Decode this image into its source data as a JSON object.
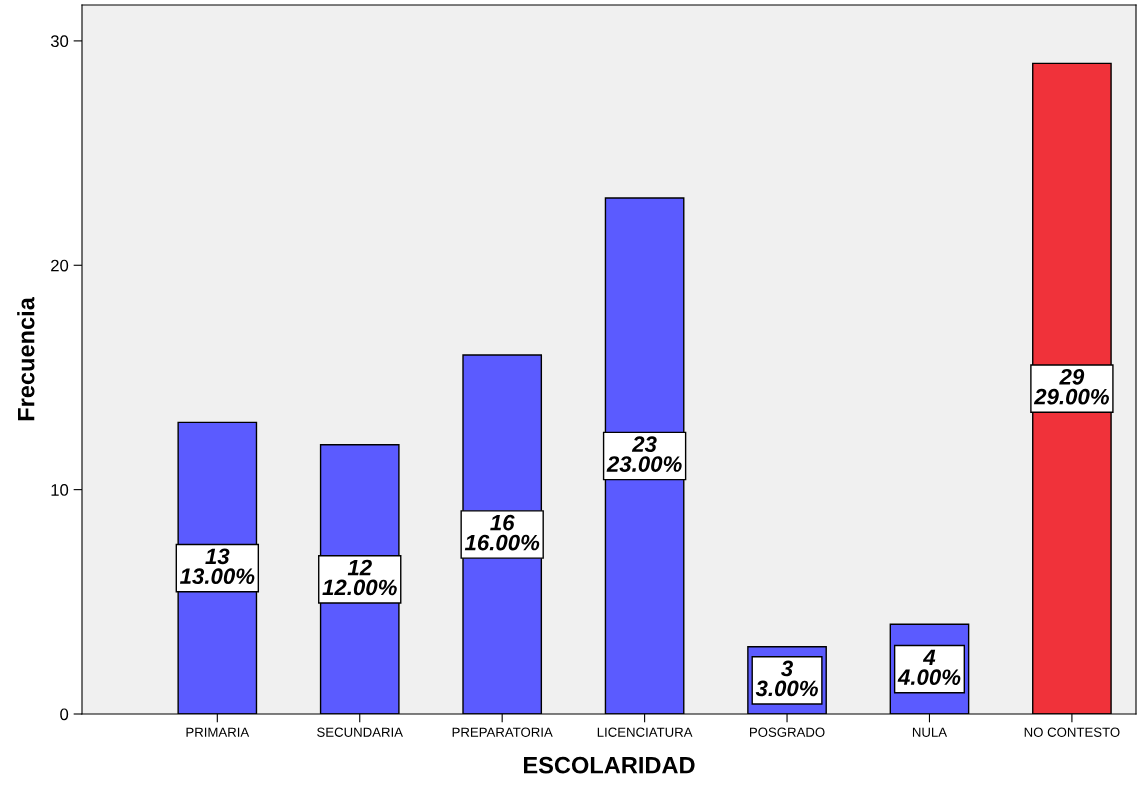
{
  "chart_data": {
    "type": "bar",
    "xlabel": "ESCOLARIDAD",
    "ylabel": "Frecuencia",
    "categories": [
      "PRIMARIA",
      "SECUNDARIA",
      "PREPARATORIA",
      "LICENCIATURA",
      "POSGRADO",
      "NULA",
      "NO CONTESTO"
    ],
    "values": [
      13,
      12,
      16,
      23,
      3,
      4,
      29
    ],
    "colors": [
      "#5b5bff",
      "#5b5bff",
      "#5b5bff",
      "#5b5bff",
      "#5b5bff",
      "#5b5bff",
      "#f0323a"
    ],
    "value_labels": [
      "13\n13.00%",
      "12\n12.00%",
      "16\n16.00%",
      "23\n23.00%",
      "3\n3.00%",
      "4\n4.00%",
      "29\n29.00%"
    ],
    "ylim": [
      0,
      31.6
    ],
    "yticks": [
      0,
      10,
      20,
      30
    ],
    "grid": false,
    "legend": false
  }
}
